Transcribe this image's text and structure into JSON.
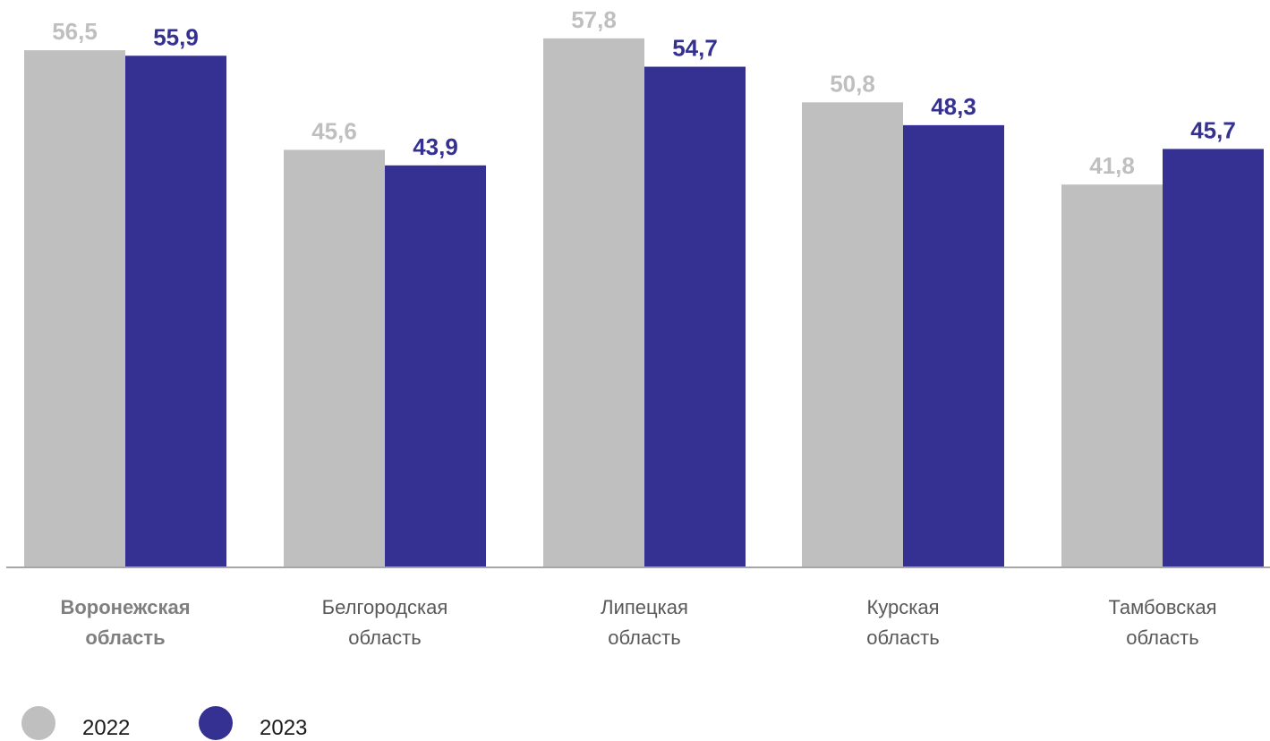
{
  "chart_data": {
    "type": "bar",
    "categories": [
      [
        "Воронежская",
        "область"
      ],
      [
        "Белгородская",
        "область"
      ],
      [
        "Липецкая",
        "область"
      ],
      [
        "Курская",
        "область"
      ],
      [
        "Тамбовская",
        "область"
      ]
    ],
    "highlight_category": 0,
    "series": [
      {
        "name": "2022",
        "color": "#bfbfbf",
        "label_color": "#bfbfbf",
        "values": [
          56.5,
          45.6,
          57.8,
          50.8,
          41.8
        ],
        "labels": [
          "56,5",
          "45,6",
          "57,8",
          "50,8",
          "41,8"
        ]
      },
      {
        "name": "2023",
        "color": "#353192",
        "label_color": "#353192",
        "values": [
          55.9,
          43.9,
          54.7,
          48.3,
          45.7
        ],
        "labels": [
          "55,9",
          "43,9",
          "54,7",
          "48,3",
          "45,7"
        ]
      }
    ],
    "ylim": [
      0,
      62
    ],
    "grid": false,
    "legend_position": "bottom-left",
    "colors": {
      "axis": "#a6a6a6",
      "category_text": "#595959",
      "highlight_text": "#7f7f7f"
    }
  },
  "legend": [
    {
      "label": "2022",
      "color": "#bfbfbf"
    },
    {
      "label": "2023",
      "color": "#353192"
    }
  ]
}
